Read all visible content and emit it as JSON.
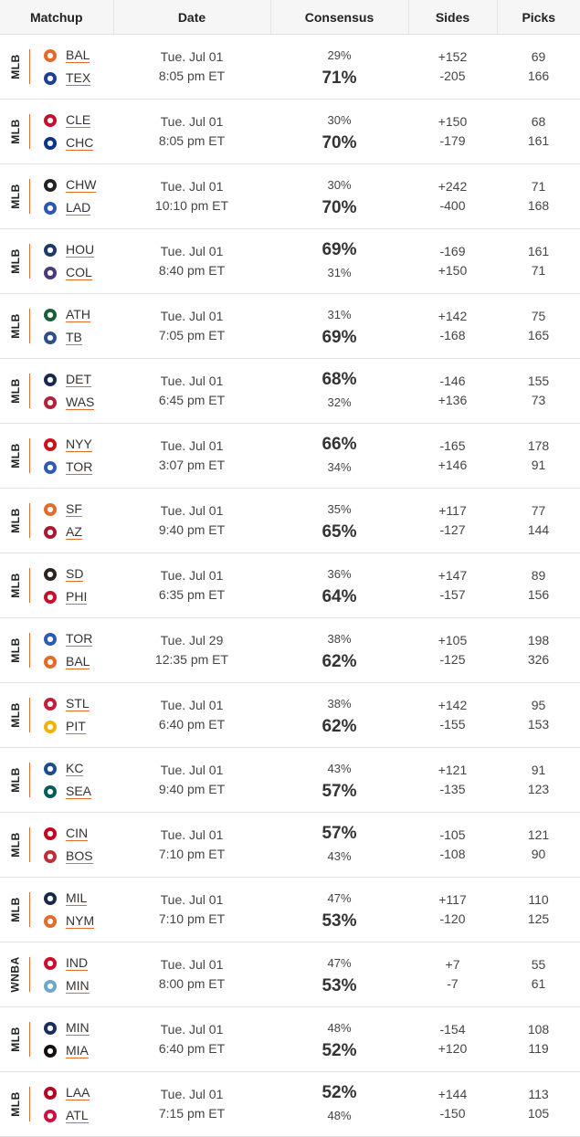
{
  "headers": {
    "matchup": "Matchup",
    "date": "Date",
    "consensus": "Consensus",
    "sides": "Sides",
    "picks": "Picks"
  },
  "games": [
    {
      "league": "MLB",
      "team1": "BAL",
      "team2": "TEX",
      "c1": "#e36b2c",
      "c2": "#1e3f96",
      "date": "Tue. Jul 01",
      "time": "8:05 pm ET",
      "cons1": "29%",
      "cons2": "71%",
      "big": 2,
      "side1": "+152",
      "side2": "-205",
      "pick1": "69",
      "pick2": "166"
    },
    {
      "league": "MLB",
      "team1": "CLE",
      "team2": "CHC",
      "c1": "#c8102e",
      "c2": "#0e3386",
      "date": "Tue. Jul 01",
      "time": "8:05 pm ET",
      "cons1": "30%",
      "cons2": "70%",
      "big": 2,
      "side1": "+150",
      "side2": "-179",
      "pick1": "68",
      "pick2": "161"
    },
    {
      "league": "MLB",
      "team1": "CHW",
      "team2": "LAD",
      "c1": "#222222",
      "c2": "#2a5ab4",
      "date": "Tue. Jul 01",
      "time": "10:10 pm ET",
      "cons1": "30%",
      "cons2": "70%",
      "big": 2,
      "side1": "+242",
      "side2": "-400",
      "pick1": "71",
      "pick2": "168"
    },
    {
      "league": "MLB",
      "team1": "HOU",
      "team2": "COL",
      "c1": "#1d3a6b",
      "c2": "#4b3a7a",
      "date": "Tue. Jul 01",
      "time": "8:40 pm ET",
      "cons1": "69%",
      "cons2": "31%",
      "big": 1,
      "side1": "-169",
      "side2": "+150",
      "pick1": "161",
      "pick2": "71"
    },
    {
      "league": "MLB",
      "team1": "ATH",
      "team2": "TB",
      "c1": "#1b5e3b",
      "c2": "#2d4f8a",
      "date": "Tue. Jul 01",
      "time": "7:05 pm ET",
      "cons1": "31%",
      "cons2": "69%",
      "big": 2,
      "side1": "+142",
      "side2": "-168",
      "pick1": "75",
      "pick2": "165"
    },
    {
      "league": "MLB",
      "team1": "DET",
      "team2": "WAS",
      "c1": "#1a2a4e",
      "c2": "#b3213a",
      "date": "Tue. Jul 01",
      "time": "6:45 pm ET",
      "cons1": "68%",
      "cons2": "32%",
      "big": 1,
      "side1": "-146",
      "side2": "+136",
      "pick1": "155",
      "pick2": "73"
    },
    {
      "league": "MLB",
      "team1": "NYY",
      "team2": "TOR",
      "c1": "#c4161c",
      "c2": "#2c5cb6",
      "date": "Tue. Jul 01",
      "time": "3:07 pm ET",
      "cons1": "66%",
      "cons2": "34%",
      "big": 1,
      "side1": "-165",
      "side2": "+146",
      "pick1": "178",
      "pick2": "91"
    },
    {
      "league": "MLB",
      "team1": "SF",
      "team2": "AZ",
      "c1": "#e36b2c",
      "c2": "#a71930",
      "date": "Tue. Jul 01",
      "time": "9:40 pm ET",
      "cons1": "35%",
      "cons2": "65%",
      "big": 2,
      "side1": "+117",
      "side2": "-127",
      "pick1": "77",
      "pick2": "144"
    },
    {
      "league": "MLB",
      "team1": "SD",
      "team2": "PHI",
      "c1": "#2f241d",
      "c2": "#c8102e",
      "date": "Tue. Jul 01",
      "time": "6:35 pm ET",
      "cons1": "36%",
      "cons2": "64%",
      "big": 2,
      "side1": "+147",
      "side2": "-157",
      "pick1": "89",
      "pick2": "156"
    },
    {
      "league": "MLB",
      "team1": "TOR",
      "team2": "BAL",
      "c1": "#2c5cb6",
      "c2": "#e36b2c",
      "date": "Tue. Jul 29",
      "time": "12:35 pm ET",
      "cons1": "38%",
      "cons2": "62%",
      "big": 2,
      "side1": "+105",
      "side2": "-125",
      "pick1": "198",
      "pick2": "326"
    },
    {
      "league": "MLB",
      "team1": "STL",
      "team2": "PIT",
      "c1": "#c41e3a",
      "c2": "#f2b300",
      "date": "Tue. Jul 01",
      "time": "6:40 pm ET",
      "cons1": "38%",
      "cons2": "62%",
      "big": 2,
      "side1": "+142",
      "side2": "-155",
      "pick1": "95",
      "pick2": "153"
    },
    {
      "league": "MLB",
      "team1": "KC",
      "team2": "SEA",
      "c1": "#1c4d8c",
      "c2": "#005c5c",
      "date": "Tue. Jul 01",
      "time": "9:40 pm ET",
      "cons1": "43%",
      "cons2": "57%",
      "big": 2,
      "side1": "+121",
      "side2": "-135",
      "pick1": "91",
      "pick2": "123"
    },
    {
      "league": "MLB",
      "team1": "CIN",
      "team2": "BOS",
      "c1": "#c6011f",
      "c2": "#bd3039",
      "date": "Tue. Jul 01",
      "time": "7:10 pm ET",
      "cons1": "57%",
      "cons2": "43%",
      "big": 1,
      "side1": "-105",
      "side2": "-108",
      "pick1": "121",
      "pick2": "90"
    },
    {
      "league": "MLB",
      "team1": "MIL",
      "team2": "NYM",
      "c1": "#1b2a4a",
      "c2": "#e36b2c",
      "date": "Tue. Jul 01",
      "time": "7:10 pm ET",
      "cons1": "47%",
      "cons2": "53%",
      "big": 2,
      "side1": "+117",
      "side2": "-120",
      "pick1": "110",
      "pick2": "125"
    },
    {
      "league": "WNBA",
      "team1": "IND",
      "team2": "MIN",
      "c1": "#c8102e",
      "c2": "#6ea8c7",
      "date": "Tue. Jul 01",
      "time": "8:00 pm ET",
      "cons1": "47%",
      "cons2": "53%",
      "big": 2,
      "side1": "+7",
      "side2": "-7",
      "pick1": "55",
      "pick2": "61"
    },
    {
      "league": "MLB",
      "team1": "MIN",
      "team2": "MIA",
      "c1": "#1a2f5a",
      "c2": "#111111",
      "date": "Tue. Jul 01",
      "time": "6:40 pm ET",
      "cons1": "48%",
      "cons2": "52%",
      "big": 2,
      "side1": "-154",
      "side2": "+120",
      "pick1": "108",
      "pick2": "119"
    },
    {
      "league": "MLB",
      "team1": "LAA",
      "team2": "ATL",
      "c1": "#ba0021",
      "c2": "#ce1141",
      "date": "Tue. Jul 01",
      "time": "7:15 pm ET",
      "cons1": "52%",
      "cons2": "48%",
      "big": 1,
      "side1": "+144",
      "side2": "-150",
      "pick1": "113",
      "pick2": "105"
    }
  ]
}
